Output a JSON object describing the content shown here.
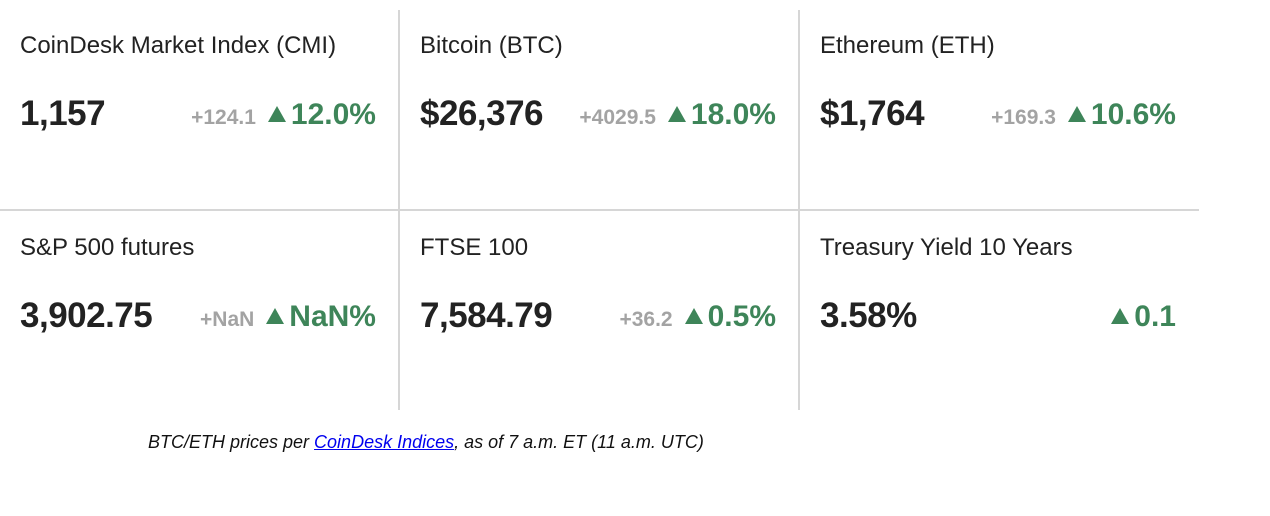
{
  "tiles": [
    {
      "name": "CoinDesk Market Index (CMI)",
      "price": "1,157",
      "change": "+124.1",
      "percent": "12.0%"
    },
    {
      "name": "Bitcoin (BTC)",
      "price": "$26,376",
      "change": "+4029.5",
      "percent": "18.0%"
    },
    {
      "name": "Ethereum (ETH)",
      "price": "$1,764",
      "change": "+169.3",
      "percent": "10.6%"
    },
    {
      "name": "S&P 500 futures",
      "price": "3,902.75",
      "change": "+NaN",
      "percent": "NaN%"
    },
    {
      "name": "FTSE 100",
      "price": "7,584.79",
      "change": "+36.2",
      "percent": "0.5%"
    },
    {
      "name": "Treasury Yield 10 Years",
      "price": "3.58%",
      "change": "",
      "percent": "0.1"
    }
  ],
  "footnote": {
    "prefix": "BTC/ETH prices per ",
    "link_text": "CoinDesk Indices",
    "suffix": ", as of 7 a.m. ET (11 a.m. UTC)"
  },
  "colors": {
    "positive": "#3e8559",
    "muted": "#a3a3a3",
    "divider": "#d6d6d6",
    "link": "#0000ee"
  },
  "icons": {
    "up_arrow": "triangle-up-icon"
  }
}
